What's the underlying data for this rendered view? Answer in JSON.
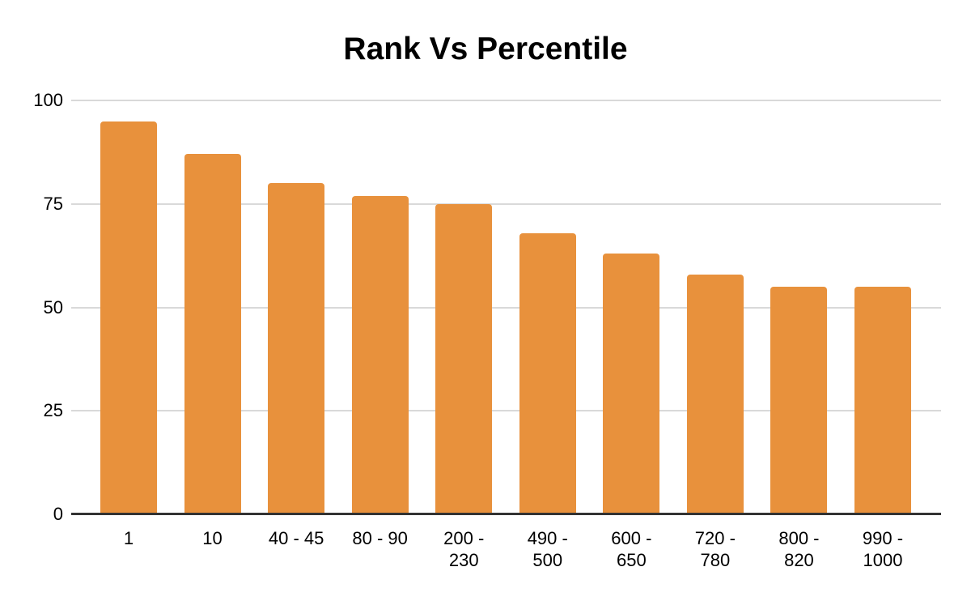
{
  "chart_data": {
    "type": "bar",
    "title": "Rank Vs Percentile",
    "categories": [
      "1",
      "10",
      "40 - 45",
      "80 - 90",
      "200 - 230",
      "490 - 500",
      "600 - 650",
      "720 - 780",
      "800 - 820",
      "990 - 1000"
    ],
    "values": [
      95,
      87,
      80,
      77,
      75,
      68,
      63,
      58,
      55,
      55
    ],
    "xlabel": "",
    "ylabel": "",
    "ylim": [
      0,
      100
    ],
    "yticks": [
      0,
      25,
      50,
      75,
      100
    ],
    "grid": true,
    "legend": false,
    "bar_color": "#E8913C",
    "gridline_color": "#D9D9D9",
    "axis_line_color": "#333333",
    "background": "#FFFFFF",
    "text_color": "#000000"
  }
}
